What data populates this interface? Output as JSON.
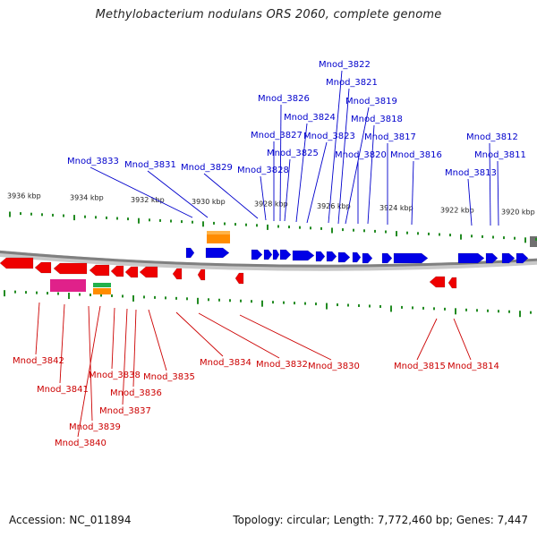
{
  "title": "Methylobacterium nodulans ORS 2060, complete genome",
  "footer": {
    "accession_label": "Accession:",
    "accession": "NC_011894",
    "topology_text": "Topology: circular; Length: 7,772,460 bp; Genes: 7,447"
  },
  "colors": {
    "forward_gene": "#0000e6",
    "reverse_gene": "#ee0000",
    "forward_label": "#0000cc",
    "reverse_label": "#cc0000",
    "tick": "#228b22",
    "backbone": "#808080",
    "orange_feature": "#ff8c00",
    "magenta_feature": "#e0218a",
    "green_feature": "#22b14c"
  },
  "ruler": {
    "labels": [
      "3936 kbp",
      "3934 kbp",
      "3932 kbp",
      "3930 kbp",
      "3928 kbp",
      "3926 kbp",
      "3924 kbp",
      "3922 kbp",
      "3920 kbp"
    ]
  },
  "forward_labels": [
    "Mnod_3833",
    "Mnod_3831",
    "Mnod_3829",
    "Mnod_3828",
    "Mnod_3827",
    "Mnod_3826",
    "Mnod_3825",
    "Mnod_3824",
    "Mnod_3823",
    "Mnod_3822",
    "Mnod_3821",
    "Mnod_3820",
    "Mnod_3819",
    "Mnod_3818",
    "Mnod_3817",
    "Mnod_3816",
    "Mnod_3813",
    "Mnod_3812",
    "Mnod_3811"
  ],
  "reverse_labels": [
    "Mnod_3842",
    "Mnod_3841",
    "Mnod_3840",
    "Mnod_3839",
    "Mnod_3838",
    "Mnod_3837",
    "Mnod_3836",
    "Mnod_3835",
    "Mnod_3834",
    "Mnod_3832",
    "Mnod_3830",
    "Mnod_3815",
    "Mnod_3814"
  ]
}
